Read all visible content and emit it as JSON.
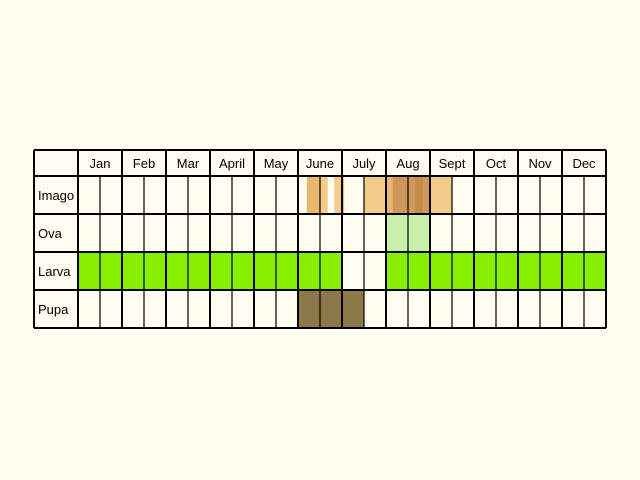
{
  "colors": {
    "background": "#fffdf0",
    "cell": "#fffdf0",
    "grid": "#000000",
    "larva": "#88ee00",
    "ova": "#c8f0a8",
    "pupa": "#8c7848",
    "imago_light": "#f2cc88",
    "imago_mid": "#e6b870",
    "imago_dark": "#d09858",
    "imago_deep": "#c48c48"
  },
  "months": [
    "Jan",
    "Feb",
    "Mar",
    "April",
    "May",
    "June",
    "July",
    "Aug",
    "Sept",
    "Oct",
    "Nov",
    "Dec"
  ],
  "rows": [
    {
      "label": "Imago",
      "cells": [
        [],
        [],
        [],
        [],
        [],
        [],
        [],
        [],
        [],
        [],
        [
          {
            "s": 0.4,
            "e": 1,
            "c": "imago_mid"
          }
        ],
        [
          {
            "s": 0,
            "e": 0.35,
            "c": "imago_light"
          },
          {
            "s": 0.65,
            "e": 1,
            "c": "imago_light"
          }
        ],
        [
          {
            "s": 0,
            "e": 0.1,
            "c": "imago_mid"
          }
        ],
        [
          {
            "s": 0,
            "e": 1,
            "c": "imago_light"
          }
        ],
        [
          {
            "s": 0,
            "e": 0.3,
            "c": "imago_mid"
          },
          {
            "s": 0.3,
            "e": 1,
            "c": "imago_dark"
          }
        ],
        [
          {
            "s": 0,
            "e": 0.3,
            "c": "imago_dark"
          },
          {
            "s": 0.3,
            "e": 0.7,
            "c": "imago_deep"
          },
          {
            "s": 0.7,
            "e": 1,
            "c": "imago_dark"
          }
        ],
        [
          {
            "s": 0,
            "e": 1,
            "c": "imago_light"
          }
        ],
        [],
        [],
        [],
        [],
        [],
        [],
        []
      ]
    },
    {
      "label": "Ova",
      "cells": [
        [],
        [],
        [],
        [],
        [],
        [],
        [],
        [],
        [],
        [],
        [],
        [],
        [],
        [],
        [
          {
            "s": 0,
            "e": 1,
            "c": "ova"
          }
        ],
        [
          {
            "s": 0,
            "e": 1,
            "c": "ova"
          }
        ],
        [],
        [],
        [],
        [],
        [],
        [],
        [],
        []
      ]
    },
    {
      "label": "Larva",
      "cells": [
        [
          {
            "s": 0,
            "e": 1,
            "c": "larva"
          }
        ],
        [
          {
            "s": 0,
            "e": 1,
            "c": "larva"
          }
        ],
        [
          {
            "s": 0,
            "e": 1,
            "c": "larva"
          }
        ],
        [
          {
            "s": 0,
            "e": 1,
            "c": "larva"
          }
        ],
        [
          {
            "s": 0,
            "e": 1,
            "c": "larva"
          }
        ],
        [
          {
            "s": 0,
            "e": 1,
            "c": "larva"
          }
        ],
        [
          {
            "s": 0,
            "e": 1,
            "c": "larva"
          }
        ],
        [
          {
            "s": 0,
            "e": 1,
            "c": "larva"
          }
        ],
        [
          {
            "s": 0,
            "e": 1,
            "c": "larva"
          }
        ],
        [
          {
            "s": 0,
            "e": 1,
            "c": "larva"
          }
        ],
        [
          {
            "s": 0,
            "e": 1,
            "c": "larva"
          }
        ],
        [
          {
            "s": 0,
            "e": 1,
            "c": "larva"
          }
        ],
        [],
        [],
        [
          {
            "s": 0,
            "e": 1,
            "c": "larva"
          }
        ],
        [
          {
            "s": 0,
            "e": 1,
            "c": "larva"
          }
        ],
        [
          {
            "s": 0,
            "e": 1,
            "c": "larva"
          }
        ],
        [
          {
            "s": 0,
            "e": 1,
            "c": "larva"
          }
        ],
        [
          {
            "s": 0,
            "e": 1,
            "c": "larva"
          }
        ],
        [
          {
            "s": 0,
            "e": 1,
            "c": "larva"
          }
        ],
        [
          {
            "s": 0,
            "e": 1,
            "c": "larva"
          }
        ],
        [
          {
            "s": 0,
            "e": 1,
            "c": "larva"
          }
        ],
        [
          {
            "s": 0,
            "e": 1,
            "c": "larva"
          }
        ],
        [
          {
            "s": 0,
            "e": 1,
            "c": "larva"
          }
        ]
      ]
    },
    {
      "label": "Pupa",
      "cells": [
        [],
        [],
        [],
        [],
        [],
        [],
        [],
        [],
        [],
        [],
        [
          {
            "s": 0,
            "e": 1,
            "c": "pupa"
          }
        ],
        [
          {
            "s": 0,
            "e": 1,
            "c": "pupa"
          }
        ],
        [
          {
            "s": 0,
            "e": 1,
            "c": "pupa"
          }
        ],
        [],
        [],
        [],
        [],
        [],
        [],
        [],
        [],
        [],
        [],
        []
      ]
    }
  ]
}
